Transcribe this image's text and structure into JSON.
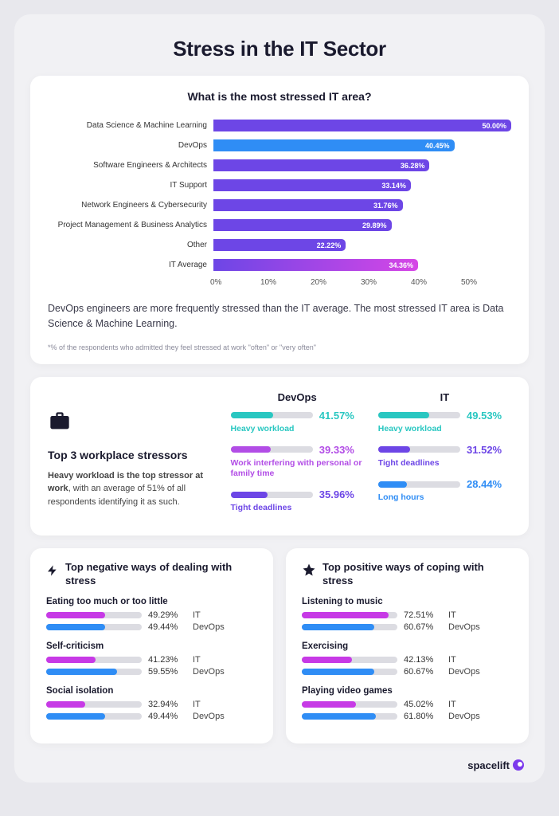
{
  "title": "Stress in the IT Sector",
  "main_chart": {
    "type": "bar",
    "title": "What is the most stressed IT area?",
    "xmax": 50,
    "xtick_step": 10,
    "xtick_labels": [
      "0%",
      "10%",
      "20%",
      "30%",
      "40%",
      "50%"
    ],
    "bars": [
      {
        "label": "Data Science & Machine Learning",
        "value": 50.0,
        "color": "#6d46e6",
        "display": "50.00%"
      },
      {
        "label": "DevOps",
        "value": 40.45,
        "color": "#2f8df5",
        "display": "40.45%"
      },
      {
        "label": "Software Engineers & Architects",
        "value": 36.28,
        "color": "#6d46e6",
        "display": "36.28%"
      },
      {
        "label": "IT Support",
        "value": 33.14,
        "color": "#6d46e6",
        "display": "33.14%"
      },
      {
        "label": "Network Engineers & Cybersecurity",
        "value": 31.76,
        "color": "#6d46e6",
        "display": "31.76%"
      },
      {
        "label": "Project Management & Business Analytics",
        "value": 29.89,
        "color": "#6d46e6",
        "display": "29.89%"
      },
      {
        "label": "Other",
        "value": 22.22,
        "color": "#6d46e6",
        "display": "22.22%"
      },
      {
        "label": "IT Average",
        "value": 34.36,
        "gradient_from": "#6d46e6",
        "gradient_to": "#d646e6",
        "display": "34.36%"
      }
    ],
    "caption": "DevOps engineers are more frequently stressed than the IT average. The most stressed IT area is Data Science & Machine Learning.",
    "footnote": "*% of the respondents who admitted they feel stressed at work \"often\" or \"very often\""
  },
  "stressors": {
    "icon": "briefcase-icon",
    "title": "Top 3 workplace stressors",
    "desc_bold": "Heavy workload is the top stressor at work",
    "desc_rest": ", with an average of 51% of all respondents identifying it as such.",
    "columns": [
      {
        "head": "DevOps",
        "items": [
          {
            "pct": 41.57,
            "pct_display": "41.57%",
            "label": "Heavy workload",
            "color": "#29c7c1"
          },
          {
            "pct": 39.33,
            "pct_display": "39.33%",
            "label": "Work interfering with personal or family time",
            "color": "#b24de6"
          },
          {
            "pct": 35.96,
            "pct_display": "35.96%",
            "label": "Tight deadlines",
            "color": "#6d46e6"
          }
        ]
      },
      {
        "head": "IT",
        "items": [
          {
            "pct": 49.53,
            "pct_display": "49.53%",
            "label": "Heavy workload",
            "color": "#29c7c1"
          },
          {
            "pct": 31.52,
            "pct_display": "31.52%",
            "label": "Tight deadlines",
            "color": "#6d46e6"
          },
          {
            "pct": 28.44,
            "pct_display": "28.44%",
            "label": "Long hours",
            "color": "#2f8df5"
          }
        ]
      }
    ]
  },
  "negative": {
    "icon": "bolt-icon",
    "title": "Top negative ways of dealing with stress",
    "colors": {
      "it": "#c73ae6",
      "devops": "#2f8df5"
    },
    "metrics": [
      {
        "label": "Eating too much or too little",
        "it": 49.29,
        "it_display": "49.29%",
        "devops": 49.44,
        "devops_display": "49.44%"
      },
      {
        "label": "Self-criticism",
        "it": 41.23,
        "it_display": "41.23%",
        "devops": 59.55,
        "devops_display": "59.55%"
      },
      {
        "label": "Social isolation",
        "it": 32.94,
        "it_display": "32.94%",
        "devops": 49.44,
        "devops_display": "49.44%"
      }
    ]
  },
  "positive": {
    "icon": "star-icon",
    "title": "Top positive ways of coping with stress",
    "colors": {
      "it": "#c73ae6",
      "devops": "#2f8df5"
    },
    "metrics": [
      {
        "label": "Listening to music",
        "it": 72.51,
        "it_display": "72.51%",
        "devops": 60.67,
        "devops_display": "60.67%"
      },
      {
        "label": "Exercising",
        "it": 42.13,
        "it_display": "42.13%",
        "devops": 60.67,
        "devops_display": "60.67%"
      },
      {
        "label": "Playing video games",
        "it": 45.02,
        "it_display": "45.02%",
        "devops": 61.8,
        "devops_display": "61.80%"
      }
    ]
  },
  "tags": {
    "it": "IT",
    "devops": "DevOps"
  },
  "brand": "spacelift",
  "bar_max_pct": 80
}
